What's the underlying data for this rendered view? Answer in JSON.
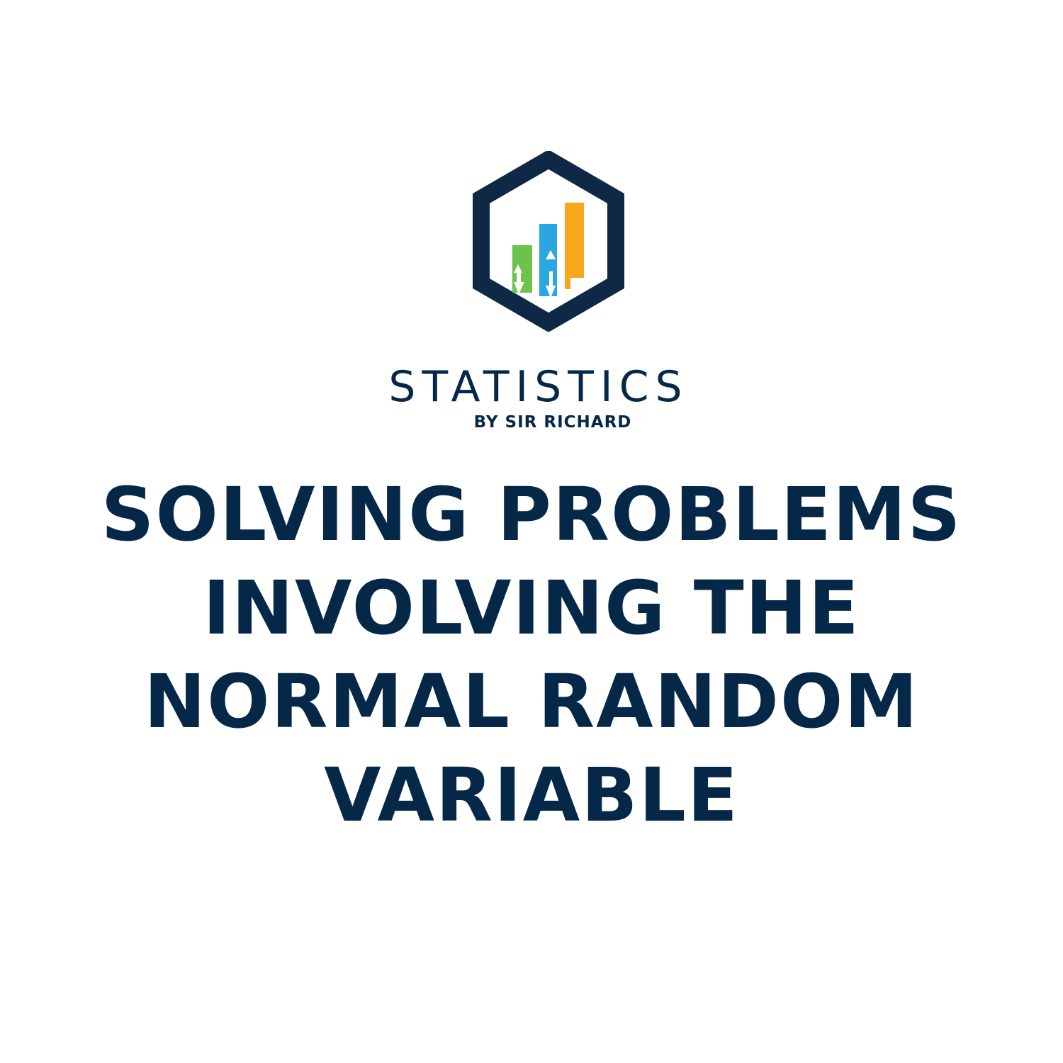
{
  "logo": {
    "brand_name": "STATISTICS",
    "byline": "BY SIR RICHARD",
    "colors": {
      "frame": "#0f2846",
      "bar_green": "#6cc24a",
      "bar_blue": "#2aa6e0",
      "bar_orange": "#f5a81c"
    }
  },
  "title": {
    "lines": [
      "SOLVING PROBLEMS",
      "INVOLVING THE",
      "NORMAL RANDOM",
      "VARIABLE"
    ],
    "color": "#062848"
  }
}
